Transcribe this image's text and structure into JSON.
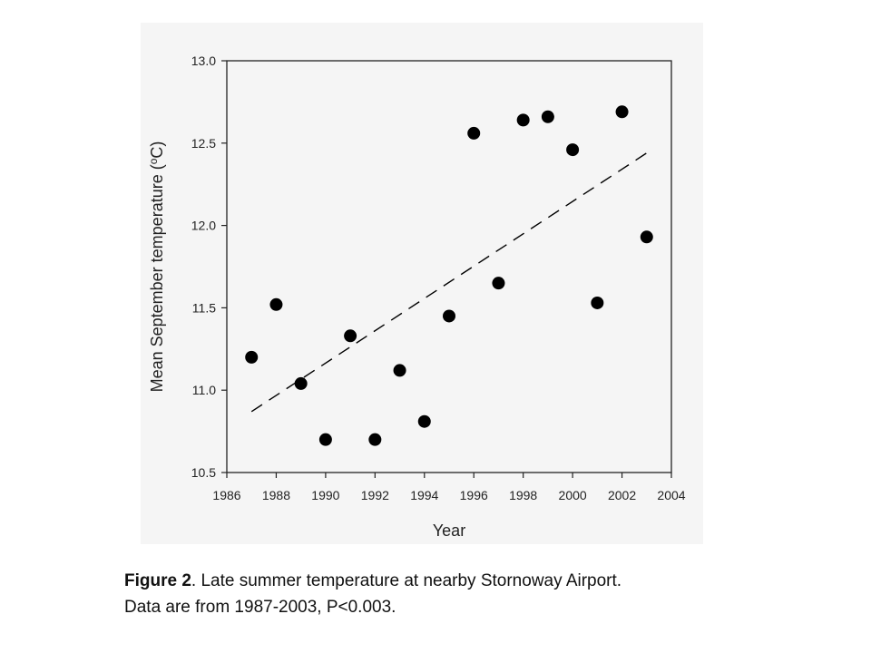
{
  "chart_data": {
    "type": "scatter",
    "title": "",
    "xlabel": "Year",
    "ylabel": "Mean September temperature (°C)",
    "ylabel_parts": {
      "before": "Mean September temperature (",
      "sup": "o",
      "after": "C)"
    },
    "xlim": [
      1986,
      2004
    ],
    "ylim": [
      10.5,
      13.0
    ],
    "x_ticks": [
      1986,
      1988,
      1990,
      1992,
      1994,
      1996,
      1998,
      2000,
      2002,
      2004
    ],
    "y_ticks": [
      "10.5",
      "11.0",
      "11.5",
      "12.0",
      "12.5",
      "13.0"
    ],
    "grid": false,
    "series": [
      {
        "x": [
          1987,
          1988,
          1989,
          1990,
          1991,
          1992,
          1993,
          1994,
          1995,
          1996,
          1997,
          1998,
          1999,
          2000,
          2001,
          2002,
          2003
        ],
        "y": [
          11.2,
          11.52,
          11.04,
          10.7,
          11.33,
          10.7,
          11.12,
          10.81,
          11.45,
          12.56,
          11.65,
          12.64,
          12.66,
          12.46,
          11.53,
          12.69,
          11.93
        ],
        "color": "#000000"
      }
    ],
    "trendline": {
      "x": [
        1987,
        2003
      ],
      "y": [
        10.87,
        12.44
      ],
      "style": "dashed",
      "color": "#000000"
    }
  },
  "caption": {
    "label": "Figure 2",
    "text_line1": ". Late summer temperature at nearby Stornoway Airport.",
    "text_line2": "Data are from 1987-2003,  P<0.003."
  }
}
